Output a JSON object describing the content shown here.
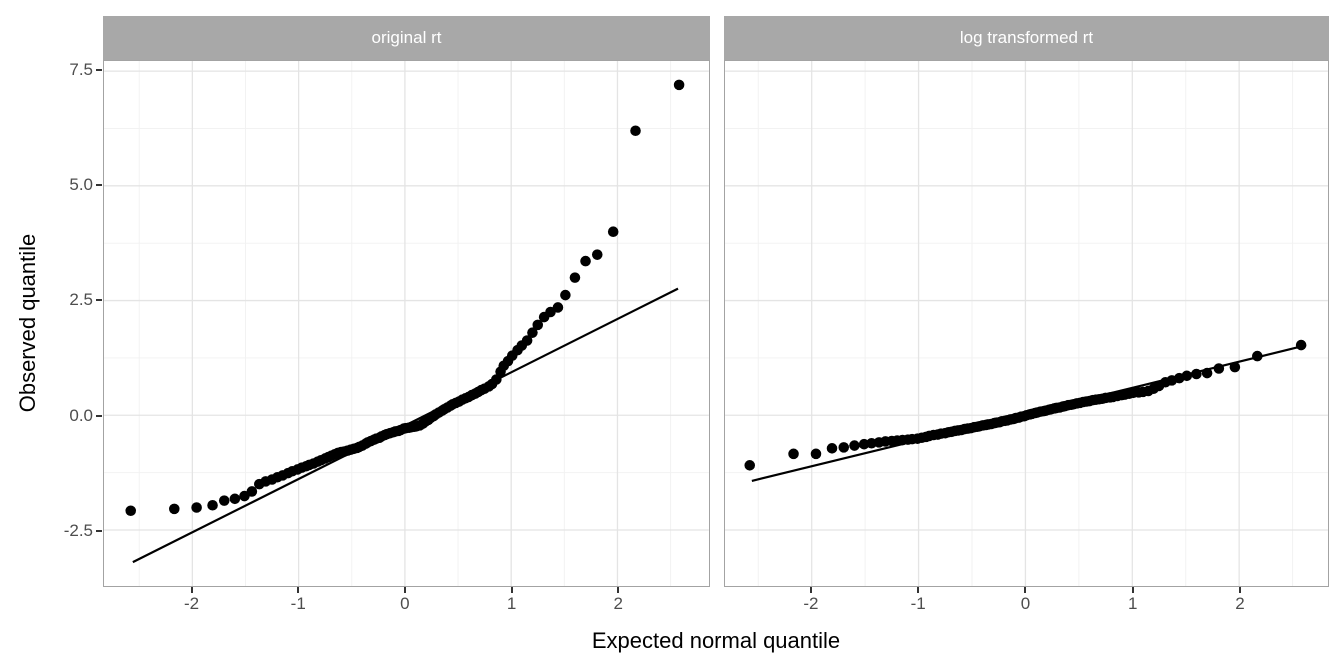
{
  "chart_data": {
    "type": "scatter",
    "subtype": "qq-plot-faceted",
    "title": "",
    "xlabel": "Expected normal quantile",
    "ylabel": "Observed quantile",
    "grid": "major+minor",
    "legend": "none",
    "y_domain": [
      -3.72,
      7.72
    ],
    "y_ticks": {
      "values": [
        7.5,
        5.0,
        2.5,
        0.0,
        -2.5
      ],
      "labels": [
        "7.5",
        "5.0",
        "2.5",
        "0.0",
        "-2.5"
      ]
    },
    "x_ticks": {
      "values": [
        -2,
        -1,
        0,
        1,
        2
      ],
      "labels": [
        "-2",
        "-1",
        "0",
        "1",
        "2"
      ]
    },
    "y_minor": [
      6.25,
      3.75,
      1.25,
      -1.25
    ],
    "x_minor": [
      -2.5,
      -1.5,
      -0.5,
      0.5,
      1.5,
      2.5
    ],
    "x_quantiles": [
      -2.58,
      -2.17,
      -1.96,
      -1.81,
      -1.7,
      -1.6,
      -1.51,
      -1.44,
      -1.37,
      -1.31,
      -1.25,
      -1.2,
      -1.15,
      -1.1,
      -1.06,
      -1.01,
      -0.97,
      -0.93,
      -0.9,
      -0.86,
      -0.82,
      -0.79,
      -0.75,
      -0.72,
      -0.69,
      -0.66,
      -0.63,
      -0.6,
      -0.57,
      -0.54,
      -0.51,
      -0.48,
      -0.45,
      -0.43,
      -0.4,
      -0.37,
      -0.35,
      -0.32,
      -0.29,
      -0.27,
      -0.24,
      -0.22,
      -0.19,
      -0.17,
      -0.14,
      -0.11,
      -0.09,
      -0.06,
      -0.04,
      -0.01,
      0.01,
      0.04,
      0.06,
      0.09,
      0.11,
      0.14,
      0.17,
      0.19,
      0.22,
      0.24,
      0.27,
      0.29,
      0.32,
      0.35,
      0.37,
      0.4,
      0.43,
      0.45,
      0.48,
      0.51,
      0.54,
      0.57,
      0.6,
      0.63,
      0.66,
      0.69,
      0.72,
      0.75,
      0.79,
      0.82,
      0.86,
      0.9,
      0.93,
      0.97,
      1.01,
      1.06,
      1.1,
      1.15,
      1.2,
      1.25,
      1.31,
      1.37,
      1.44,
      1.51,
      1.6,
      1.7,
      1.81,
      1.96,
      2.17,
      2.58
    ],
    "facets": [
      {
        "label": "original rt",
        "x_domain": [
          -2.83,
          2.86
        ],
        "line": {
          "x1": -2.56,
          "y1": -3.2,
          "x2": 2.57,
          "y2": 2.76
        },
        "y": [
          -2.08,
          -2.04,
          -2.01,
          -1.96,
          -1.86,
          -1.82,
          -1.76,
          -1.66,
          -1.5,
          -1.44,
          -1.4,
          -1.35,
          -1.31,
          -1.26,
          -1.22,
          -1.18,
          -1.14,
          -1.11,
          -1.08,
          -1.05,
          -1.01,
          -0.98,
          -0.94,
          -0.91,
          -0.88,
          -0.85,
          -0.82,
          -0.8,
          -0.79,
          -0.77,
          -0.75,
          -0.73,
          -0.71,
          -0.69,
          -0.66,
          -0.62,
          -0.59,
          -0.56,
          -0.53,
          -0.51,
          -0.49,
          -0.46,
          -0.43,
          -0.41,
          -0.39,
          -0.37,
          -0.35,
          -0.34,
          -0.32,
          -0.29,
          -0.28,
          -0.27,
          -0.26,
          -0.25,
          -0.24,
          -0.22,
          -0.18,
          -0.14,
          -0.1,
          -0.06,
          -0.02,
          0.02,
          0.06,
          0.1,
          0.13,
          0.17,
          0.21,
          0.24,
          0.27,
          0.3,
          0.34,
          0.37,
          0.4,
          0.44,
          0.47,
          0.51,
          0.55,
          0.58,
          0.63,
          0.68,
          0.78,
          0.95,
          1.08,
          1.18,
          1.3,
          1.42,
          1.52,
          1.63,
          1.8,
          1.97,
          2.14,
          2.25,
          2.35,
          2.62,
          3.0,
          3.36,
          3.5,
          4.0,
          6.2,
          7.2
        ]
      },
      {
        "label": "log transformed rt",
        "x_domain": [
          -2.81,
          2.83
        ],
        "line": {
          "x1": -2.56,
          "y1": -1.43,
          "x2": 2.6,
          "y2": 1.51
        },
        "y": [
          -1.09,
          -0.84,
          -0.84,
          -0.72,
          -0.7,
          -0.66,
          -0.63,
          -0.61,
          -0.59,
          -0.57,
          -0.56,
          -0.55,
          -0.54,
          -0.53,
          -0.52,
          -0.51,
          -0.49,
          -0.47,
          -0.45,
          -0.43,
          -0.42,
          -0.4,
          -0.39,
          -0.37,
          -0.36,
          -0.34,
          -0.33,
          -0.32,
          -0.3,
          -0.29,
          -0.28,
          -0.26,
          -0.25,
          -0.24,
          -0.22,
          -0.21,
          -0.2,
          -0.19,
          -0.17,
          -0.16,
          -0.15,
          -0.13,
          -0.12,
          -0.11,
          -0.09,
          -0.08,
          -0.06,
          -0.05,
          -0.03,
          -0.02,
          0.0,
          0.02,
          0.03,
          0.05,
          0.06,
          0.08,
          0.09,
          0.1,
          0.12,
          0.13,
          0.15,
          0.16,
          0.17,
          0.19,
          0.2,
          0.22,
          0.23,
          0.24,
          0.26,
          0.27,
          0.29,
          0.3,
          0.31,
          0.33,
          0.34,
          0.35,
          0.36,
          0.38,
          0.39,
          0.4,
          0.42,
          0.44,
          0.45,
          0.47,
          0.49,
          0.5,
          0.51,
          0.53,
          0.58,
          0.64,
          0.72,
          0.76,
          0.81,
          0.86,
          0.9,
          0.92,
          1.02,
          1.05,
          1.29,
          1.53
        ]
      }
    ]
  },
  "colors": {
    "point": "#000000",
    "line": "#000000",
    "strip_fill": "#a8a8a8",
    "strip_text": "#ffffff",
    "grid_major": "#e4e4e4",
    "grid_minor": "#f1f1f1",
    "panel_border": "#a3a3a3",
    "tick_mark": "#333333",
    "tick_label": "#4d4d4d",
    "axis_title": "#000000",
    "background": "#ffffff"
  }
}
